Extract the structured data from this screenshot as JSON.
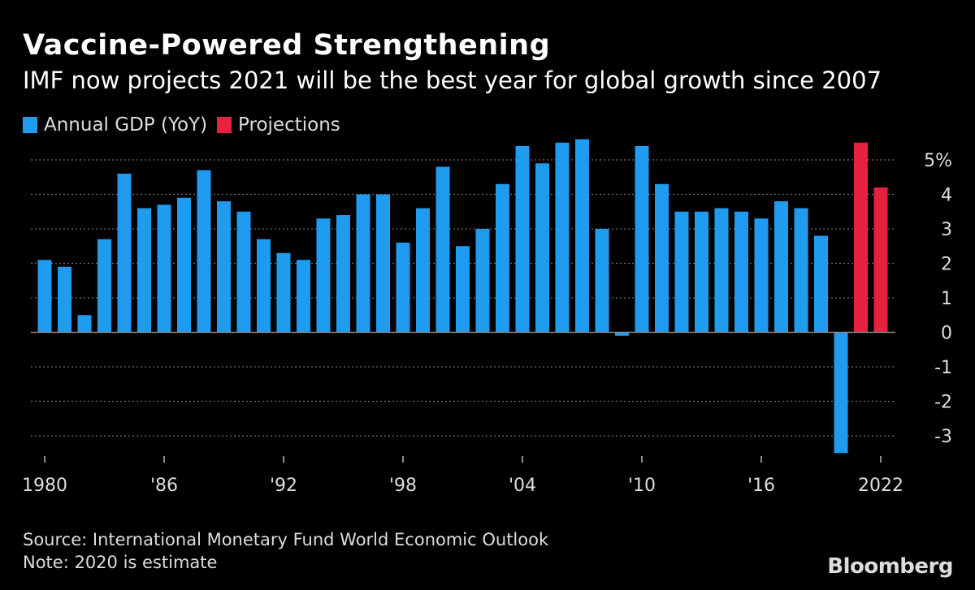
{
  "chart_data": {
    "type": "bar",
    "title": "Vaccine-Powered Strengthening",
    "subtitle": "IMF now projects 2021 will be the best year for global growth since 2007",
    "legend": [
      {
        "name": "Annual GDP (YoY)",
        "color": "#1f9bf0"
      },
      {
        "name": "Projections",
        "color": "#e8213f"
      }
    ],
    "x": [
      1980,
      1981,
      1982,
      1983,
      1984,
      1985,
      1986,
      1987,
      1988,
      1989,
      1990,
      1991,
      1992,
      1993,
      1994,
      1995,
      1996,
      1997,
      1998,
      1999,
      2000,
      2001,
      2002,
      2003,
      2004,
      2005,
      2006,
      2007,
      2008,
      2009,
      2010,
      2011,
      2012,
      2013,
      2014,
      2015,
      2016,
      2017,
      2018,
      2019,
      2020,
      2021,
      2022
    ],
    "series": [
      {
        "name": "Annual GDP (YoY)",
        "values": [
          2.1,
          1.9,
          0.5,
          2.7,
          4.6,
          3.6,
          3.7,
          3.9,
          4.7,
          3.8,
          3.5,
          2.7,
          2.3,
          2.1,
          3.3,
          3.4,
          4.0,
          4.0,
          2.6,
          3.6,
          4.8,
          2.5,
          3.0,
          4.3,
          5.4,
          4.9,
          5.5,
          5.6,
          3.0,
          -0.1,
          5.4,
          4.3,
          3.5,
          3.5,
          3.6,
          3.5,
          3.3,
          3.8,
          3.6,
          2.8,
          -3.5,
          null,
          null
        ]
      },
      {
        "name": "Projections",
        "values": [
          null,
          null,
          null,
          null,
          null,
          null,
          null,
          null,
          null,
          null,
          null,
          null,
          null,
          null,
          null,
          null,
          null,
          null,
          null,
          null,
          null,
          null,
          null,
          null,
          null,
          null,
          null,
          null,
          null,
          null,
          null,
          null,
          null,
          null,
          null,
          null,
          null,
          null,
          null,
          null,
          null,
          5.5,
          4.2
        ]
      }
    ],
    "ylim": [
      -3.5,
      5.6
    ],
    "yticks": [
      -3,
      -2,
      -1,
      0,
      1,
      2,
      3,
      4,
      5
    ],
    "ytick_labels": [
      "-3",
      "-2",
      "-1",
      "0",
      "1",
      "2",
      "3",
      "4",
      "5%"
    ],
    "xtick_years": [
      1980,
      1986,
      1992,
      1998,
      2004,
      2010,
      2016,
      2022
    ],
    "xtick_labels": [
      "1980",
      "'86",
      "'92",
      "'98",
      "'04",
      "'10",
      "'16",
      "2022"
    ],
    "grid": "dotted horizontal",
    "legend_position": "top-left",
    "xlabel": "",
    "ylabel": ""
  },
  "footer": {
    "source": "Source: International Monetary Fund World Economic Outlook",
    "note": "Note: 2020 is estimate",
    "brand": "Bloomberg"
  },
  "colors": {
    "background": "#000000",
    "grid": "#6e6e6e",
    "axis_text": "#dddddd"
  }
}
